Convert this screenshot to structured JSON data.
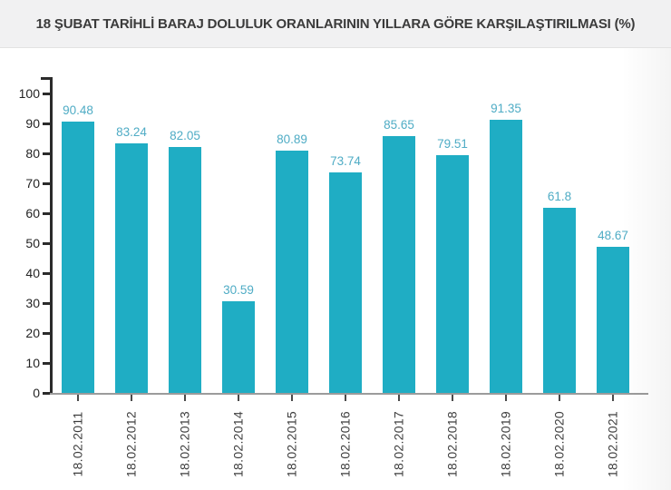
{
  "header": {
    "title": "18 ŞUBAT TARİHLİ BARAJ DOLULUK ORANLARININ YILLARA GÖRE KARŞILAŞTIRILMASI (%)"
  },
  "colors": {
    "bar": "#1fadc4",
    "value_label": "#4facc5",
    "axis_dark": "#2b2b2b",
    "x_axis_line": "#9b9b9b",
    "header_bg": "#f1f1f2",
    "title_text": "#3b3b3b",
    "tick_label": "#242424",
    "x_label": "#3d3d3d"
  },
  "chart_data": {
    "type": "bar",
    "title": "18 ŞUBAT TARİHLİ BARAJ DOLULUK ORANLARININ YILLARA GÖRE KARŞILAŞTIRILMASI (%)",
    "categories": [
      "18.02.2011",
      "18.02.2012",
      "18.02.2013",
      "18.02.2014",
      "18.02.2015",
      "18.02.2016",
      "18.02.2017",
      "18.02.2018",
      "18.02.2019",
      "18.02.2020",
      "18.02.2021"
    ],
    "values": [
      90.48,
      83.24,
      82.05,
      30.59,
      80.89,
      73.74,
      85.65,
      79.51,
      91.35,
      61.8,
      48.67
    ],
    "value_labels": [
      "90.48",
      "83.24",
      "82.05",
      "30.59",
      "80.89",
      "73.74",
      "85.65",
      "79.51",
      "91.35",
      "61.8",
      "48.67"
    ],
    "xlabel": "",
    "ylabel": "",
    "ylim": [
      0,
      100
    ],
    "yticks": [
      0,
      10,
      20,
      30,
      40,
      50,
      60,
      70,
      80,
      90,
      100
    ],
    "grid": false,
    "legend": null,
    "value_labels_shown": true,
    "x_labels_rotation_deg": -90
  }
}
